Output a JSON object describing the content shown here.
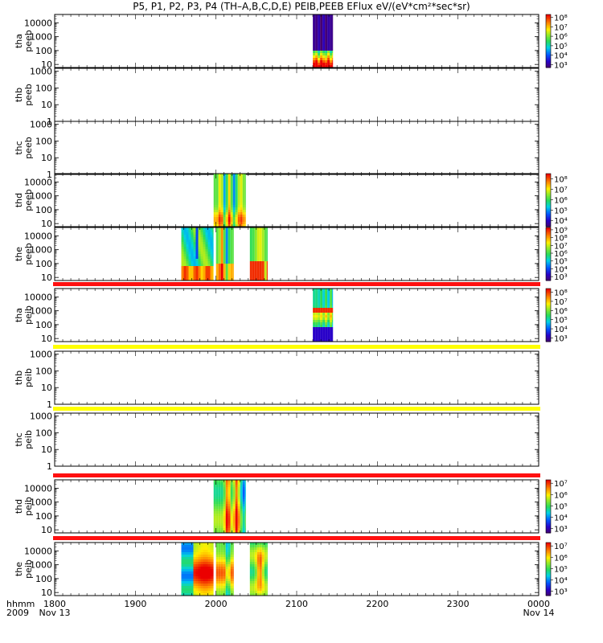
{
  "title": "P5, P1, P2, P3, P4 (TH–A,B,C,D,E) PEIB,PEEB EFlux eV/(eV*cm²*sec*sr)",
  "chart_data": {
    "type": "heatmap",
    "x_axis": {
      "label_line1": "hhmm",
      "label_line2": "2009",
      "ticks": [
        "1800",
        "1900",
        "2000",
        "2100",
        "2200",
        "2300",
        "0000"
      ],
      "tick_values_hours": [
        18,
        19,
        20,
        21,
        22,
        23,
        24
      ],
      "date_labels": [
        {
          "at_hour": 18,
          "text": "Nov 13"
        },
        {
          "at_hour": 24,
          "text": "Nov 14"
        }
      ],
      "range_hours": [
        18,
        24
      ]
    },
    "y_scale": "log",
    "panels": [
      {
        "probe": "tha",
        "product": "peeb",
        "ylim": [
          6,
          40000
        ],
        "yticks": [
          "10",
          "100",
          "1000",
          "10000"
        ],
        "colorbar": {
          "ticks": [
            "10³",
            "10⁴",
            "10⁵",
            "10⁶",
            "10⁷",
            "10⁸"
          ],
          "log_min": 2.7,
          "log_max": 8.3
        },
        "blocks": [
          [
            21.2,
            21.45,
            "peeb_a"
          ]
        ],
        "top_band": null
      },
      {
        "probe": "thb",
        "product": "peeb",
        "ylim": [
          1,
          1500
        ],
        "yticks": [
          "1",
          "10",
          "100",
          "1000"
        ],
        "colorbar": null,
        "blocks": [],
        "top_band": null
      },
      {
        "probe": "thc",
        "product": "peeb",
        "ylim": [
          1,
          1500
        ],
        "yticks": [
          "1",
          "10",
          "100",
          "1000"
        ],
        "colorbar": null,
        "blocks": [],
        "top_band": null
      },
      {
        "probe": "thd",
        "product": "peeb",
        "ylim": [
          6,
          40000
        ],
        "yticks": [
          "10",
          "100",
          "1000",
          "10000"
        ],
        "colorbar": {
          "ticks": [
            "10⁴",
            "10⁵",
            "10⁶",
            "10⁷",
            "10⁸"
          ],
          "log_min": 3.4,
          "log_max": 8.5
        },
        "blocks": [
          [
            19.97,
            20.37,
            "peeb_d"
          ]
        ],
        "top_band": null
      },
      {
        "probe": "the",
        "product": "peeb",
        "ylim": [
          6,
          40000
        ],
        "yticks": [
          "10",
          "100",
          "1000",
          "10000"
        ],
        "colorbar": {
          "ticks": [
            "10³",
            "10⁴",
            "10⁵",
            "10⁶",
            "10⁷",
            "10⁸",
            "10⁹"
          ],
          "log_min": 2.5,
          "log_max": 9.3
        },
        "blocks": [
          [
            19.57,
            19.97,
            "peeb_e1"
          ],
          [
            20.0,
            20.22,
            "peeb_e2"
          ],
          [
            20.42,
            20.64,
            "peeb_e3"
          ]
        ],
        "top_band": null
      },
      {
        "probe": "tha",
        "product": "peib",
        "ylim": [
          6,
          40000
        ],
        "yticks": [
          "10",
          "100",
          "1000",
          "10000"
        ],
        "colorbar": {
          "ticks": [
            "10³",
            "10⁴",
            "10⁵",
            "10⁶",
            "10⁷",
            "10⁸"
          ],
          "log_min": 2.6,
          "log_max": 8.4
        },
        "blocks": [
          [
            21.2,
            21.45,
            "peib_a"
          ]
        ],
        "top_band": "#ff1010"
      },
      {
        "probe": "thb",
        "product": "peib",
        "ylim": [
          1,
          1500
        ],
        "yticks": [
          "1",
          "10",
          "100",
          "1000"
        ],
        "colorbar": null,
        "blocks": [],
        "top_band": "#ffff00"
      },
      {
        "probe": "thc",
        "product": "peib",
        "ylim": [
          1,
          1500
        ],
        "yticks": [
          "1",
          "10",
          "100",
          "1000"
        ],
        "colorbar": null,
        "blocks": [],
        "top_band": "#ffff00"
      },
      {
        "probe": "thd",
        "product": "peib",
        "ylim": [
          6,
          40000
        ],
        "yticks": [
          "10",
          "100",
          "1000",
          "10000"
        ],
        "colorbar": {
          "ticks": [
            "10³",
            "10⁴",
            "10⁵",
            "10⁶",
            "10⁷"
          ],
          "log_min": 2.6,
          "log_max": 7.3
        },
        "blocks": [
          [
            19.97,
            20.37,
            "peib_d"
          ]
        ],
        "top_band": "#ff1010"
      },
      {
        "probe": "the",
        "product": "peib",
        "ylim": [
          6,
          40000
        ],
        "yticks": [
          "10",
          "100",
          "1000",
          "10000"
        ],
        "colorbar": {
          "ticks": [
            "10³",
            "10⁴",
            "10⁵",
            "10⁶",
            "10⁷"
          ],
          "log_min": 2.6,
          "log_max": 7.3
        },
        "blocks": [
          [
            19.57,
            19.97,
            "peib_e1"
          ],
          [
            20.0,
            20.22,
            "peib_e2"
          ],
          [
            20.42,
            20.64,
            "peib_e3"
          ]
        ],
        "top_band": "#ff1010"
      }
    ]
  }
}
